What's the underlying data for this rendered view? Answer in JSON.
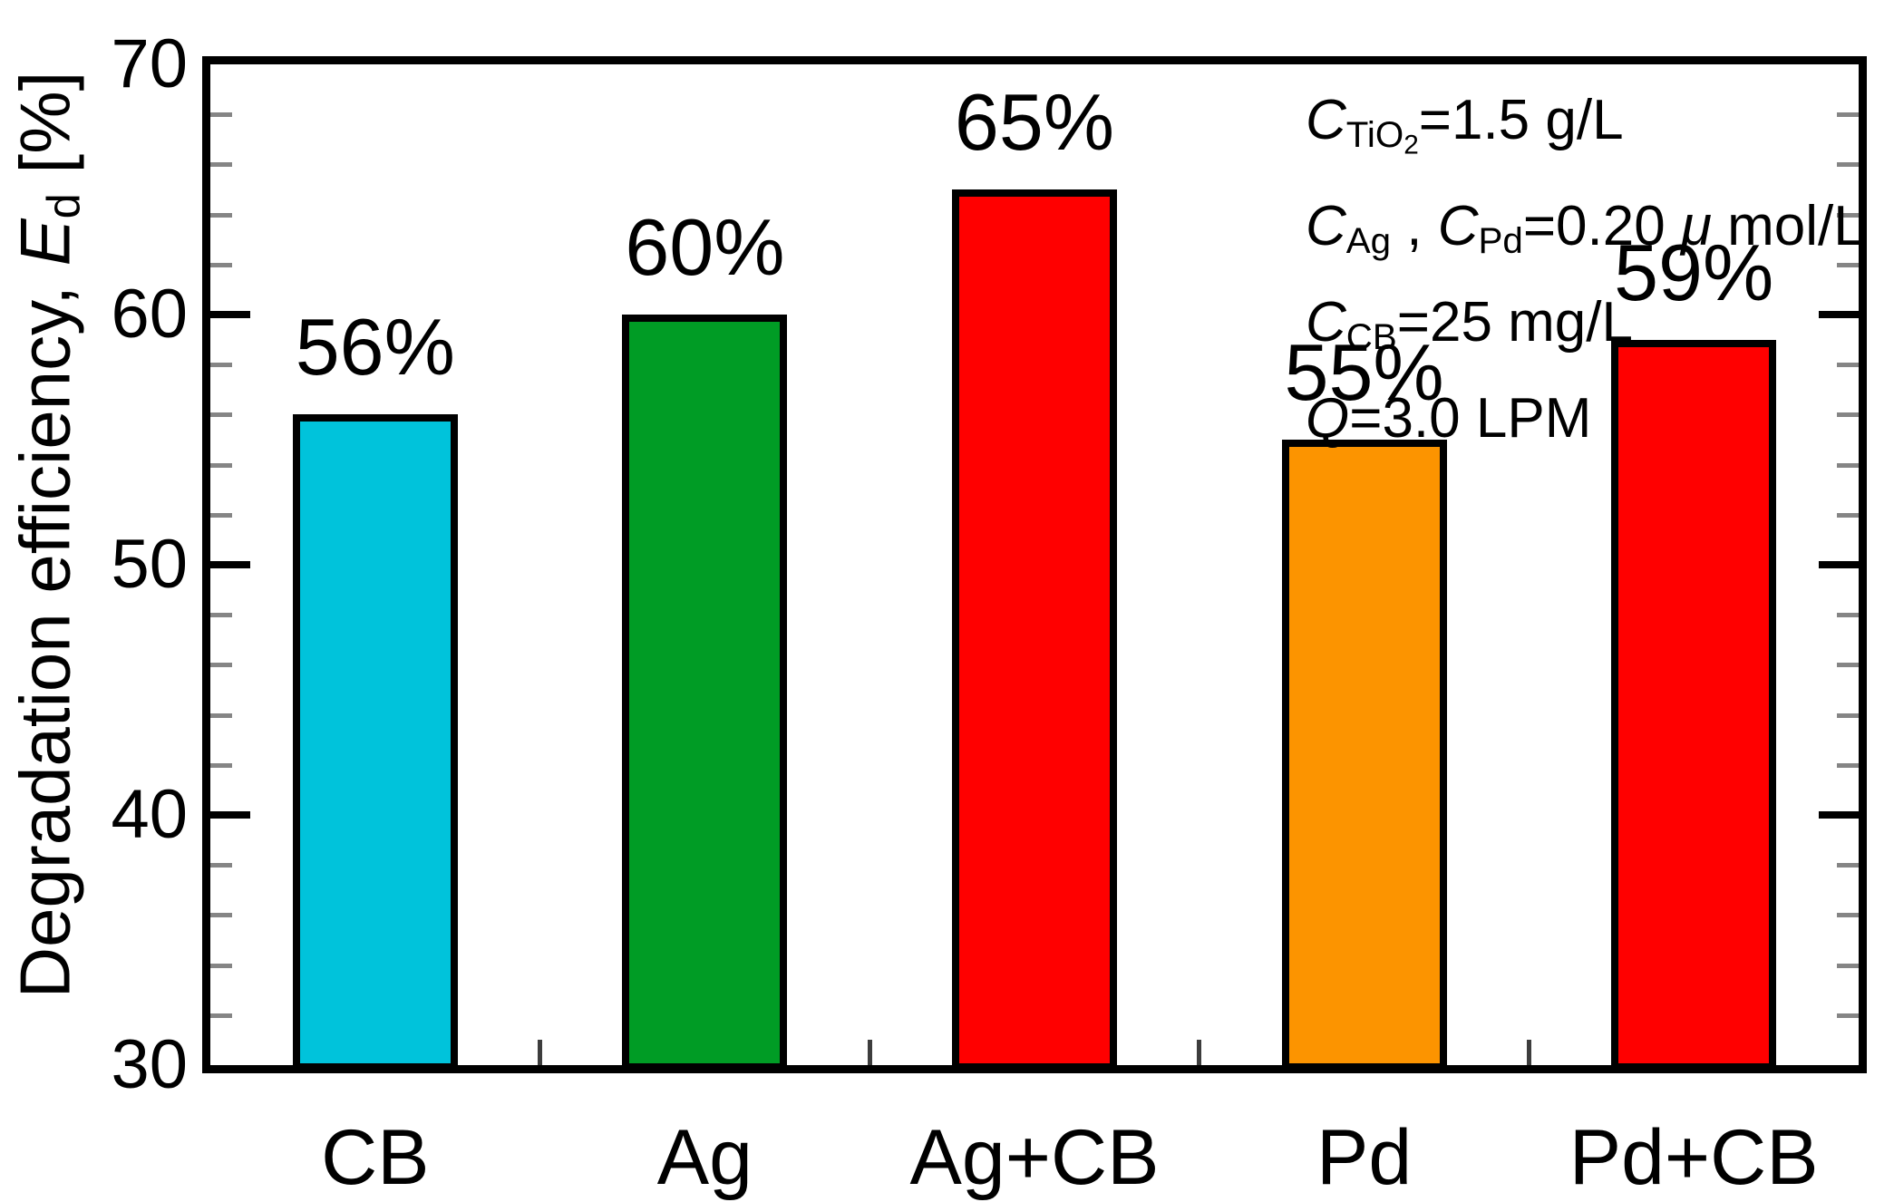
{
  "figure": {
    "background": "#ffffff"
  },
  "chart_data": {
    "type": "bar",
    "title": "",
    "categories": [
      "CB",
      "Ag",
      "Ag+CB",
      "Pd",
      "Pd+CB"
    ],
    "values": [
      56,
      60,
      65,
      55,
      59
    ],
    "value_labels": [
      "56%",
      "60%",
      "65%",
      "55%",
      "59%"
    ],
    "bar_colors": [
      "#00C3DB",
      "#009C25",
      "#FF0000",
      "#FC9400",
      "#FF0000"
    ],
    "bar_border_color": "#000000",
    "xlabel": "",
    "ylabel_text": "Degradation efficiency, Ed [%]",
    "ylabel_rich": [
      {
        "t": "Degradation efficiency, ",
        "s": "n"
      },
      {
        "t": "E",
        "s": "i"
      },
      {
        "t": "d",
        "s": "sub"
      },
      {
        "t": " [%]",
        "s": "n"
      }
    ],
    "ylim": [
      30,
      70
    ],
    "yticks": [
      30,
      40,
      50,
      60,
      70
    ],
    "ytick_labels": [
      "30",
      "40",
      "50",
      "60",
      "70"
    ],
    "minor_tick_step": 2,
    "grid": false,
    "legend": "none",
    "annotation_lines": [
      [
        {
          "t": "C",
          "s": "i"
        },
        {
          "t": "TiO",
          "s": "sub"
        },
        {
          "t": "2",
          "s": "subsub"
        },
        {
          "t": "=1.5 g/L",
          "s": "n"
        }
      ],
      [
        {
          "t": "C",
          "s": "i"
        },
        {
          "t": "Ag",
          "s": "sub"
        },
        {
          "t": " , ",
          "s": "n"
        },
        {
          "t": "C",
          "s": "i"
        },
        {
          "t": "Pd",
          "s": "sub"
        },
        {
          "t": "=0.20  ",
          "s": "n"
        },
        {
          "t": "μ",
          "s": "i"
        },
        {
          "t": " mol/L",
          "s": "n"
        }
      ],
      [
        {
          "t": "C",
          "s": "i"
        },
        {
          "t": "CB",
          "s": "sub"
        },
        {
          "t": "=25 mg/L",
          "s": "n"
        }
      ],
      [
        {
          "t": "Q",
          "s": "i"
        },
        {
          "t": "=3.0 LPM",
          "s": "n"
        }
      ]
    ],
    "annotation_lines_text": [
      "CTiO2=1.5 g/L",
      "CAg , CPd=0.20 μ mol/L",
      "CCB=25 mg/L",
      "Q=3.0 LPM"
    ]
  }
}
